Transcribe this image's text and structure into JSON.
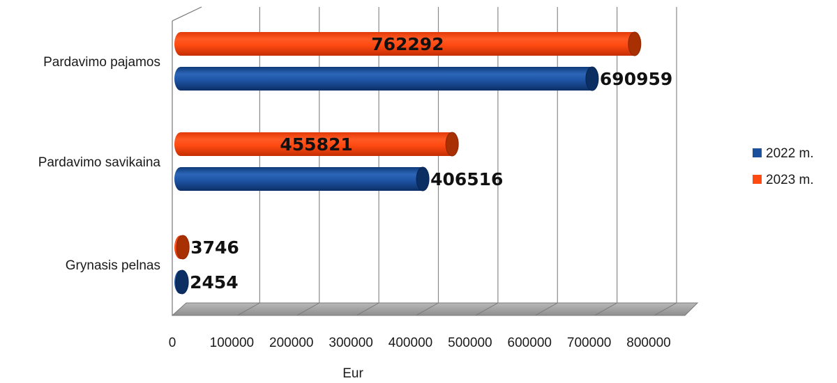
{
  "chart_data": {
    "type": "bar",
    "orientation": "horizontal",
    "style": "3d-cylinder",
    "categories": [
      "Pardavimo pajamos",
      "Pardavimo savikaina",
      "Grynasis pelnas"
    ],
    "series": [
      {
        "name": "2022 m.",
        "values": [
          690959,
          406516,
          2454
        ],
        "color": "#1c4f9c"
      },
      {
        "name": "2023 m.",
        "values": [
          762292,
          455821,
          3746
        ],
        "color": "#ff4a12"
      }
    ],
    "xlabel": "Eur",
    "ylabel": "",
    "xlim": [
      0,
      800000
    ],
    "ticks": [
      "0",
      "100000",
      "200000",
      "300000",
      "400000",
      "500000",
      "600000",
      "700000",
      "800000"
    ],
    "grid": true,
    "legend": "right"
  }
}
